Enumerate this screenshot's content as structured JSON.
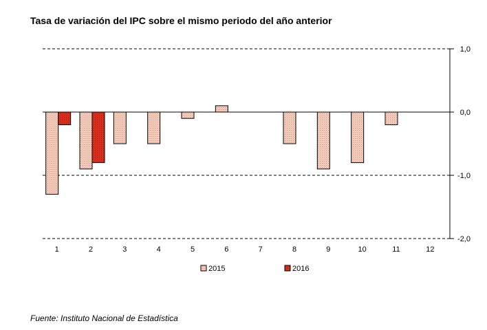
{
  "chart_data": {
    "type": "bar",
    "title": "Tasa de variación del IPC sobre el mismo periodo del año anterior",
    "categories": [
      "1",
      "2",
      "3",
      "4",
      "5",
      "6",
      "7",
      "8",
      "9",
      "10",
      "11",
      "12"
    ],
    "series": [
      {
        "name": "2015",
        "values": [
          -1.3,
          -0.9,
          -0.5,
          -0.5,
          -0.1,
          0.1,
          0.0,
          -0.5,
          -0.9,
          -0.8,
          -0.2,
          null
        ],
        "color": "#f4c9b8"
      },
      {
        "name": "2016",
        "values": [
          -0.2,
          -0.8,
          null,
          null,
          null,
          null,
          null,
          null,
          null,
          null,
          null,
          null
        ],
        "color": "#e0301e"
      }
    ],
    "ylim": [
      -2.0,
      1.0
    ],
    "yticks": [
      "1,0",
      "0,0",
      "-1,0",
      "-2,0"
    ],
    "ytick_values": [
      1.0,
      0.0,
      -1.0,
      -2.0
    ],
    "ylabel": "",
    "xlabel": "",
    "grid": "dashed horizontal at ticks",
    "legend_position": "bottom"
  },
  "footer": {
    "source": "Fuente: Instituto Nacional de Estadística"
  }
}
